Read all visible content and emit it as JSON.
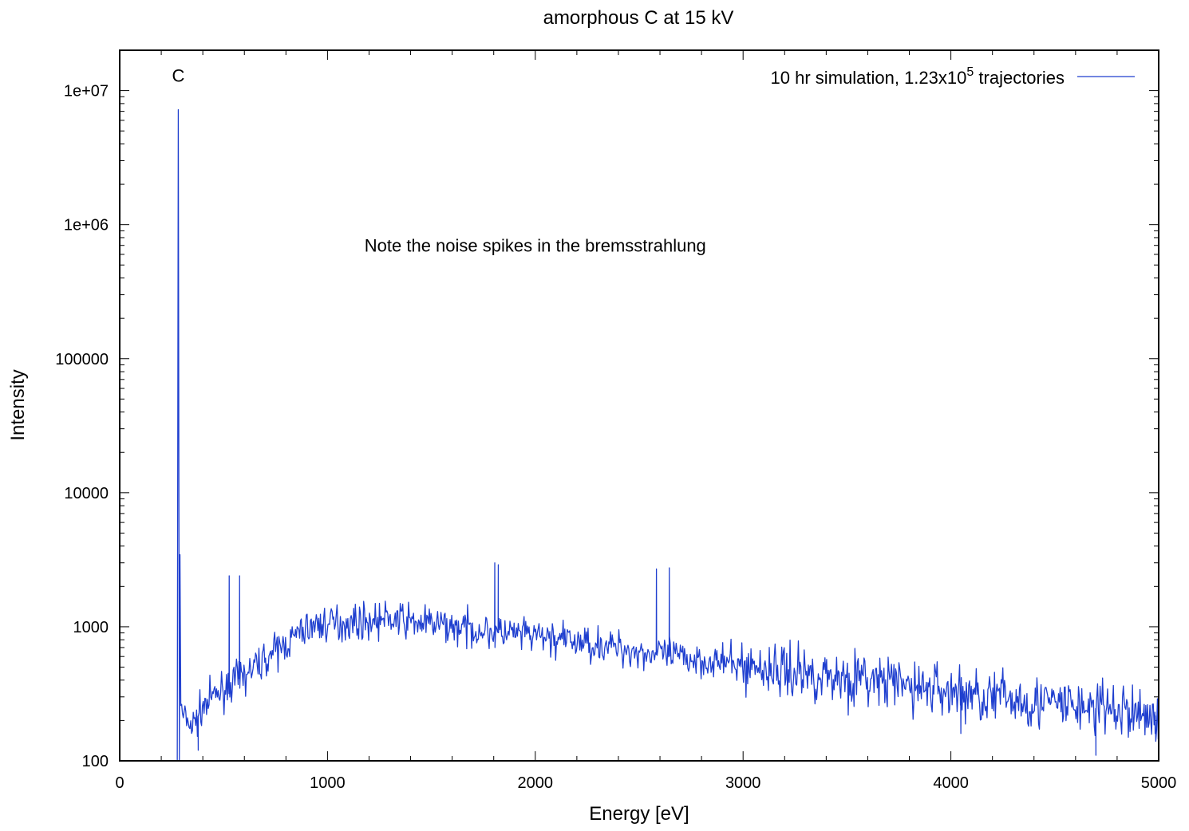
{
  "chart_data": {
    "type": "line",
    "title": "amorphous C at 15 kV",
    "xlabel": "Energy [eV]",
    "ylabel": "Intensity",
    "xlim": [
      0,
      5000
    ],
    "ylim": [
      100,
      20000000
    ],
    "yscale": "log",
    "grid": false,
    "legend_position": "top-right",
    "x_ticks": [
      0,
      1000,
      2000,
      3000,
      4000,
      5000
    ],
    "y_ticks": [
      {
        "value": 100,
        "label": "100"
      },
      {
        "value": 1000,
        "label": "1000"
      },
      {
        "value": 10000,
        "label": "10000"
      },
      {
        "value": 100000,
        "label": "100000"
      },
      {
        "value": 1000000,
        "label": "1e+06"
      },
      {
        "value": 10000000,
        "label": "1e+07"
      }
    ],
    "legend": {
      "text_main": "10 hr simulation, 1.23x10",
      "text_sup": "5",
      "text_tail": " trajectories"
    },
    "annotations": {
      "peak_label": {
        "text": "C",
        "x": 282,
        "y": 13000000
      },
      "note": {
        "text": "Note the noise spikes in the bremsstrahlung",
        "x": 2000,
        "y": 700000
      }
    },
    "series": [
      {
        "name": "10 hr simulation, 1.23x10^5 trajectories",
        "color": "#1f3fcf",
        "anchors": [
          [
            270,
            100
          ],
          [
            277,
            100
          ],
          [
            282,
            7200000
          ],
          [
            287,
            100
          ],
          [
            290,
            4000
          ],
          [
            293,
            240
          ],
          [
            300,
            220
          ],
          [
            350,
            180
          ],
          [
            400,
            250
          ],
          [
            450,
            300
          ],
          [
            500,
            340
          ],
          [
            540,
            380
          ],
          [
            600,
            430
          ],
          [
            650,
            500
          ],
          [
            700,
            580
          ],
          [
            750,
            650
          ],
          [
            800,
            740
          ],
          [
            850,
            860
          ],
          [
            900,
            980
          ],
          [
            950,
            1030
          ],
          [
            1000,
            1050
          ],
          [
            1100,
            1080
          ],
          [
            1200,
            1100
          ],
          [
            1300,
            1140
          ],
          [
            1400,
            1090
          ],
          [
            1500,
            1050
          ],
          [
            1600,
            1000
          ],
          [
            1700,
            960
          ],
          [
            1800,
            910
          ],
          [
            1900,
            880
          ],
          [
            2000,
            850
          ],
          [
            2100,
            810
          ],
          [
            2200,
            770
          ],
          [
            2300,
            740
          ],
          [
            2400,
            700
          ],
          [
            2500,
            650
          ],
          [
            2600,
            620
          ],
          [
            2700,
            590
          ],
          [
            2800,
            570
          ],
          [
            2900,
            540
          ],
          [
            3000,
            520
          ],
          [
            3100,
            490
          ],
          [
            3200,
            470
          ],
          [
            3300,
            450
          ],
          [
            3400,
            430
          ],
          [
            3500,
            420
          ],
          [
            3600,
            400
          ],
          [
            3700,
            380
          ],
          [
            3800,
            360
          ],
          [
            3900,
            345
          ],
          [
            4000,
            330
          ],
          [
            4100,
            310
          ],
          [
            4200,
            300
          ],
          [
            4300,
            290
          ],
          [
            4400,
            275
          ],
          [
            4500,
            265
          ],
          [
            4600,
            255
          ],
          [
            4700,
            245
          ],
          [
            4800,
            235
          ],
          [
            4900,
            225
          ],
          [
            5000,
            215
          ]
        ],
        "spikes": [
          {
            "x": 527,
            "y": 2400
          },
          {
            "x": 577,
            "y": 2400
          },
          {
            "x": 1805,
            "y": 3000
          },
          {
            "x": 1822,
            "y": 2900
          },
          {
            "x": 2583,
            "y": 2700
          },
          {
            "x": 2645,
            "y": 2750
          }
        ],
        "dips": [
          {
            "x": 378,
            "y": 120
          },
          {
            "x": 4048,
            "y": 160
          },
          {
            "x": 4698,
            "y": 110
          },
          {
            "x": 4983,
            "y": 160
          }
        ],
        "sampling": {
          "start": 290,
          "end": 5000,
          "step": 4,
          "noise_decades": 0.09,
          "seed": 7
        }
      }
    ]
  }
}
